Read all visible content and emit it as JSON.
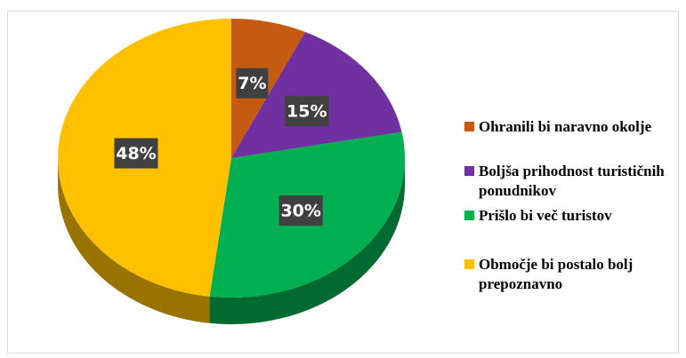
{
  "chart_data": {
    "type": "pie",
    "categories": [
      "Ohranili bi naravno okolje",
      "Boljša prihodnost turističnih ponudnikov",
      "Prišlo bi več turistov",
      "Območje bi postalo bolj prepoznavno"
    ],
    "values": [
      7,
      15,
      30,
      48
    ],
    "value_labels": [
      "7%",
      "15%",
      "30%",
      "48%"
    ],
    "colors": [
      "#C55A11",
      "#7030A0",
      "#00B050",
      "#FFC000"
    ],
    "legend": "right"
  }
}
